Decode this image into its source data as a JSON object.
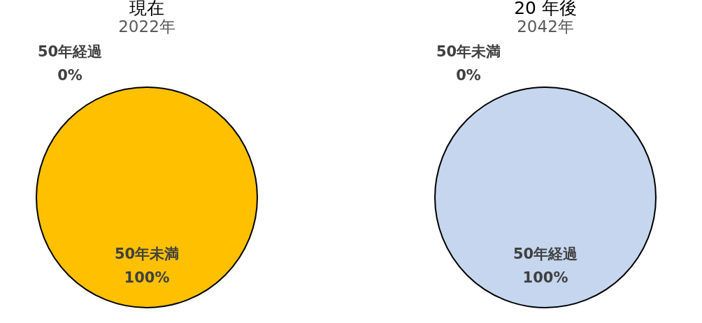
{
  "chart_data": [
    {
      "type": "pie",
      "title": "現在",
      "subtitle": "2022年",
      "categories": [
        "50年経過",
        "50年未満"
      ],
      "values": [
        0,
        100
      ],
      "value_labels": [
        "0%",
        "100%"
      ],
      "colors": [
        "#a5a5a5",
        "#ffc000"
      ],
      "legend": false
    },
    {
      "type": "pie",
      "title": "20 年後",
      "subtitle": "2042年",
      "categories": [
        "50年未満",
        "50年経過"
      ],
      "values": [
        0,
        100
      ],
      "value_labels": [
        "0%",
        "100%"
      ],
      "colors": [
        "#a5a5a5",
        "#c5d6ee"
      ],
      "legend": false
    }
  ]
}
